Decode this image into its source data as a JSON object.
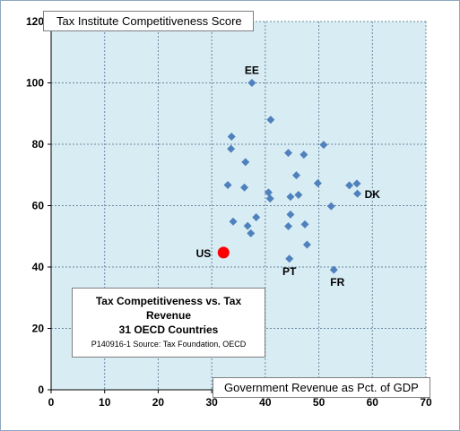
{
  "colors": {
    "plot_bg": "#d8ecf4",
    "grid": "#6a8aa0",
    "marker": "#4f81bd",
    "highlight": "#ff0000"
  },
  "chart_data": {
    "type": "scatter",
    "title": "Tax Competitiveness vs. Tax Revenue",
    "subtitle": "31 OECD Countries",
    "source": "P140916-1 Source: Tax Foundation, OECD",
    "ylabel": "Tax Institute Competitiveness Score",
    "xlabel": "Government Revenue as Pct. of GDP",
    "xlim": [
      0,
      70
    ],
    "ylim": [
      0,
      120
    ],
    "xticks": [
      0,
      10,
      20,
      30,
      40,
      50,
      60,
      70
    ],
    "yticks": [
      0,
      20,
      40,
      60,
      80,
      100,
      120
    ],
    "grid": true,
    "series": [
      {
        "marker": "diamond",
        "points": [
          {
            "x": 37.5,
            "y": 100,
            "label": "EE"
          },
          {
            "x": 41.0,
            "y": 88
          },
          {
            "x": 33.7,
            "y": 82.5
          },
          {
            "x": 33.6,
            "y": 78.5
          },
          {
            "x": 36.3,
            "y": 74.2
          },
          {
            "x": 44.3,
            "y": 77.2
          },
          {
            "x": 47.2,
            "y": 76.6
          },
          {
            "x": 50.9,
            "y": 79.8
          },
          {
            "x": 45.8,
            "y": 69.9
          },
          {
            "x": 49.8,
            "y": 67.3
          },
          {
            "x": 33.0,
            "y": 66.7
          },
          {
            "x": 36.1,
            "y": 65.9
          },
          {
            "x": 40.6,
            "y": 64.3
          },
          {
            "x": 40.9,
            "y": 62.3
          },
          {
            "x": 44.7,
            "y": 62.9
          },
          {
            "x": 46.2,
            "y": 63.5
          },
          {
            "x": 55.7,
            "y": 66.6
          },
          {
            "x": 57.1,
            "y": 67.2
          },
          {
            "x": 57.2,
            "y": 63.9,
            "label": "DK"
          },
          {
            "x": 52.3,
            "y": 59.8
          },
          {
            "x": 44.7,
            "y": 57.1
          },
          {
            "x": 38.3,
            "y": 56.2
          },
          {
            "x": 34.0,
            "y": 54.8
          },
          {
            "x": 36.7,
            "y": 53.4
          },
          {
            "x": 44.3,
            "y": 53.3
          },
          {
            "x": 47.4,
            "y": 53.9
          },
          {
            "x": 37.3,
            "y": 51.0
          },
          {
            "x": 47.8,
            "y": 47.3
          },
          {
            "x": 44.5,
            "y": 42.7,
            "label": "PT"
          },
          {
            "x": 52.8,
            "y": 39.1,
            "label": "FR"
          }
        ]
      },
      {
        "marker": "circle",
        "points": [
          {
            "x": 32.2,
            "y": 44.7,
            "label": "US"
          }
        ]
      }
    ]
  }
}
